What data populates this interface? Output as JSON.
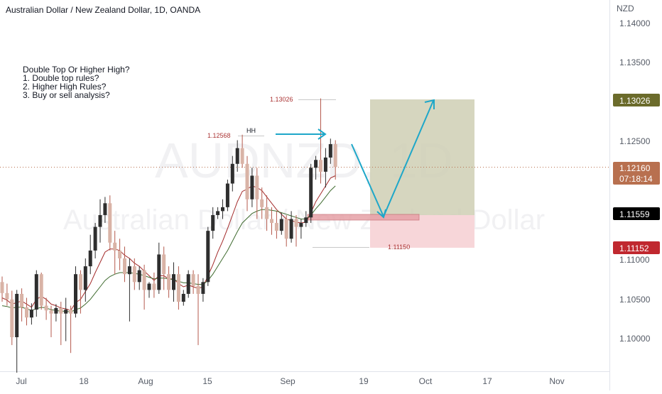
{
  "header": {
    "title": "Australian Dollar / New Zealand Dollar, 1D, OANDA"
  },
  "watermark": {
    "symbol": "AUDNZD, 1D",
    "name": "Australian Dollar / New Zealand Dollar"
  },
  "annotation": {
    "lines": [
      "Double Top Or Higher High?",
      "1. Double top rules?",
      "2. Higher High Rules?",
      "3. Buy or sell analysis?"
    ],
    "hh_label": "HH"
  },
  "price_labels": {
    "high1": "1.12568",
    "target": "1.13026",
    "stop": "1.11150"
  },
  "y_axis": {
    "currency": "NZD",
    "ticks": [
      "1.14000",
      "1.13500",
      "1.12500",
      "1.11000",
      "1.10500",
      "1.10000"
    ],
    "tags": [
      {
        "text": "1.13026",
        "sub": "",
        "color": "#6b6b2b",
        "price": 1.13026
      },
      {
        "text": "1.12160",
        "sub": "07:18:14",
        "color": "#b8704f",
        "price": 1.1216
      },
      {
        "text": "1.11559",
        "sub": "",
        "color": "#000000",
        "price": 1.11559
      },
      {
        "text": "1.11152",
        "sub": "",
        "color": "#c0282f",
        "price": 1.11152
      }
    ]
  },
  "x_axis": {
    "ticks": [
      "Jul",
      "18",
      "Aug",
      "15",
      "Sep",
      "19",
      "Oct",
      "17",
      "Nov"
    ]
  },
  "chart_data": {
    "type": "candlestick",
    "ylim": [
      1.0955,
      1.1425
    ],
    "up_color": "#2e2e2e",
    "down_color": "#d9b3a6",
    "candles": [
      [
        1.107,
        1.1077,
        1.1045,
        1.1056
      ],
      [
        1.1056,
        1.1068,
        1.104,
        1.1048
      ],
      [
        1.1048,
        1.1059,
        1.099,
        1.1
      ],
      [
        1.1,
        1.106,
        1.0955,
        1.1055
      ],
      [
        1.1055,
        1.1062,
        1.102,
        1.1038
      ],
      [
        1.1038,
        1.105,
        1.1015,
        1.1025
      ],
      [
        1.1025,
        1.1043,
        1.1016,
        1.1035
      ],
      [
        1.1035,
        1.1085,
        1.1026,
        1.108
      ],
      [
        1.108,
        1.1082,
        1.1035,
        1.104
      ],
      [
        1.104,
        1.105,
        1.1022,
        1.1034
      ],
      [
        1.1034,
        1.104,
        1.1,
        1.103
      ],
      [
        1.103,
        1.1042,
        1.102,
        1.1037
      ],
      [
        1.1037,
        1.1045,
        1.099,
        1.103
      ],
      [
        1.103,
        1.105,
        1.0995,
        1.1035
      ],
      [
        1.1035,
        1.104,
        1.098,
        1.103
      ],
      [
        1.103,
        1.109,
        1.1025,
        1.108
      ],
      [
        1.108,
        1.1085,
        1.103,
        1.106
      ],
      [
        1.106,
        1.11,
        1.1045,
        1.109
      ],
      [
        1.109,
        1.113,
        1.108,
        1.111
      ],
      [
        1.111,
        1.1145,
        1.11,
        1.114
      ],
      [
        1.114,
        1.1175,
        1.112,
        1.1155
      ],
      [
        1.1155,
        1.1178,
        1.1145,
        1.117
      ],
      [
        1.117,
        1.118,
        1.111,
        1.112
      ],
      [
        1.112,
        1.1135,
        1.108,
        1.111
      ],
      [
        1.111,
        1.1125,
        1.1085,
        1.11
      ],
      [
        1.11,
        1.1115,
        1.107,
        1.108
      ],
      [
        1.108,
        1.11,
        1.102,
        1.109
      ],
      [
        1.109,
        1.11,
        1.106,
        1.107
      ],
      [
        1.107,
        1.109,
        1.106,
        1.1085
      ],
      [
        1.1085,
        1.1092,
        1.1035,
        1.106
      ],
      [
        1.106,
        1.107,
        1.105,
        1.1068
      ],
      [
        1.1068,
        1.1082,
        1.105,
        1.106
      ],
      [
        1.106,
        1.112,
        1.1055,
        1.1105
      ],
      [
        1.1105,
        1.1115,
        1.106,
        1.108
      ],
      [
        1.108,
        1.109,
        1.105,
        1.106
      ],
      [
        1.106,
        1.1095,
        1.1045,
        1.108
      ],
      [
        1.108,
        1.109,
        1.1035,
        1.1045
      ],
      [
        1.1045,
        1.106,
        1.104,
        1.1055
      ],
      [
        1.1055,
        1.1085,
        1.105,
        1.108
      ],
      [
        1.108,
        1.1085,
        1.1055,
        1.1065
      ],
      [
        1.1065,
        1.108,
        1.099,
        1.1055
      ],
      [
        1.1055,
        1.1075,
        1.1045,
        1.107
      ],
      [
        1.107,
        1.114,
        1.1065,
        1.1135
      ],
      [
        1.1135,
        1.1165,
        1.1125,
        1.1155
      ],
      [
        1.1155,
        1.1165,
        1.115,
        1.116
      ],
      [
        1.116,
        1.1175,
        1.115,
        1.1165
      ],
      [
        1.1165,
        1.12,
        1.116,
        1.1195
      ],
      [
        1.1195,
        1.123,
        1.1185,
        1.122
      ],
      [
        1.122,
        1.125,
        1.121,
        1.124
      ],
      [
        1.124,
        1.1257,
        1.1215,
        1.122
      ],
      [
        1.122,
        1.123,
        1.116,
        1.1175
      ],
      [
        1.1175,
        1.1215,
        1.1165,
        1.1205
      ],
      [
        1.1205,
        1.1215,
        1.115,
        1.1175
      ],
      [
        1.1175,
        1.119,
        1.115,
        1.1165
      ],
      [
        1.1165,
        1.118,
        1.1135,
        1.115
      ],
      [
        1.115,
        1.1165,
        1.113,
        1.1145
      ],
      [
        1.1145,
        1.116,
        1.1125,
        1.1135
      ],
      [
        1.1135,
        1.1158,
        1.113,
        1.115
      ],
      [
        1.115,
        1.1155,
        1.1115,
        1.1125
      ],
      [
        1.1125,
        1.116,
        1.112,
        1.115
      ],
      [
        1.115,
        1.1155,
        1.1115,
        1.114
      ],
      [
        1.114,
        1.115,
        1.1125,
        1.1145
      ],
      [
        1.1145,
        1.116,
        1.114,
        1.1152
      ],
      [
        1.1152,
        1.122,
        1.1145,
        1.1215
      ],
      [
        1.1215,
        1.123,
        1.12,
        1.1225
      ],
      [
        1.1225,
        1.1303,
        1.1195,
        1.121
      ],
      [
        1.121,
        1.124,
        1.119,
        1.1228
      ],
      [
        1.1228,
        1.1252,
        1.122,
        1.1245
      ],
      [
        1.1245,
        1.125,
        1.12,
        1.1216
      ]
    ],
    "ma_fast": [
      1.105,
      1.1047,
      1.1042,
      1.1044,
      1.1046,
      1.1042,
      1.1038,
      1.1048,
      1.1052,
      1.1048,
      1.1042,
      1.104,
      1.1037,
      1.1036,
      1.1034,
      1.1044,
      1.1048,
      1.1058,
      1.1068,
      1.1082,
      1.1095,
      1.1108,
      1.1112,
      1.1112,
      1.111,
      1.1104,
      1.11,
      1.1094,
      1.109,
      1.1084,
      1.1078,
      1.1072,
      1.1078,
      1.1078,
      1.1074,
      1.1074,
      1.1068,
      1.1064,
      1.1066,
      1.1064,
      1.1062,
      1.1064,
      1.1078,
      1.1092,
      1.1108,
      1.1122,
      1.1138,
      1.1155,
      1.1172,
      1.1185,
      1.1188,
      1.1192,
      1.119,
      1.1186,
      1.1178,
      1.117,
      1.1162,
      1.1156,
      1.115,
      1.1148,
      1.1146,
      1.1145,
      1.1146,
      1.1158,
      1.1172,
      1.1182,
      1.1192,
      1.1202,
      1.1205
    ],
    "ma_slow": [
      1.104,
      1.1039,
      1.1037,
      1.1038,
      1.1038,
      1.1036,
      1.1034,
      1.1036,
      1.1038,
      1.1037,
      1.1035,
      1.1034,
      1.1033,
      1.1033,
      1.1032,
      1.1035,
      1.1037,
      1.1042,
      1.1048,
      1.1056,
      1.1064,
      1.1072,
      1.1077,
      1.108,
      1.1082,
      1.1082,
      1.1082,
      1.1081,
      1.108,
      1.1078,
      1.1076,
      1.1074,
      1.1075,
      1.1075,
      1.1074,
      1.1073,
      1.1071,
      1.1069,
      1.1069,
      1.1068,
      1.1067,
      1.1067,
      1.1072,
      1.108,
      1.109,
      1.11,
      1.111,
      1.1122,
      1.1134,
      1.1145,
      1.1151,
      1.1157,
      1.116,
      1.1162,
      1.1162,
      1.1161,
      1.116,
      1.1158,
      1.1156,
      1.1154,
      1.1152,
      1.115,
      1.115,
      1.1155,
      1.1163,
      1.117,
      1.1178,
      1.1186,
      1.1192
    ]
  }
}
